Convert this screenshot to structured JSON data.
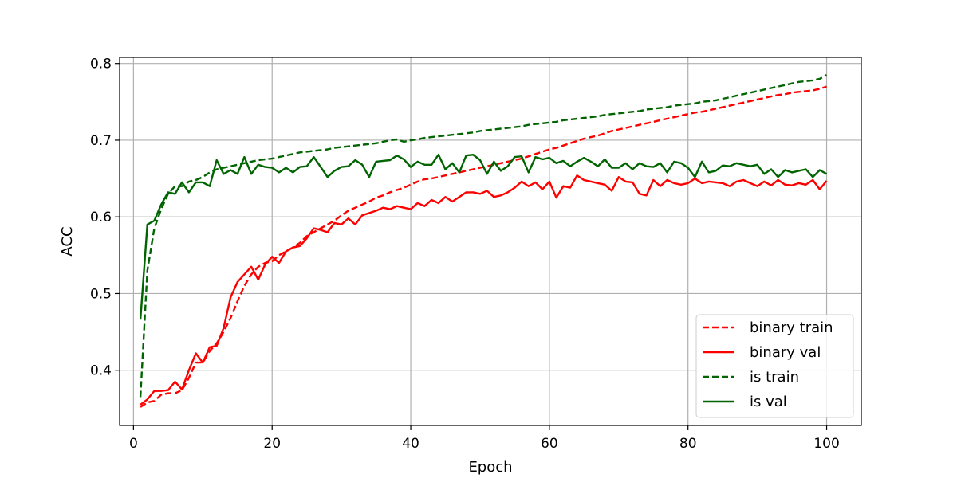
{
  "chart_data": {
    "type": "line",
    "title": "",
    "xlabel": "Epoch",
    "ylabel": "ACC",
    "xlim": [
      -2,
      105
    ],
    "ylim": [
      0.328,
      0.808
    ],
    "xticks": [
      0,
      20,
      40,
      60,
      80,
      100
    ],
    "yticks": [
      0.4,
      0.5,
      0.6,
      0.7,
      0.8
    ],
    "grid": true,
    "legend_position": "lower-right",
    "series": [
      {
        "name": "binary train",
        "color": "#ff0000",
        "style": "dashed",
        "x": [
          1,
          2,
          3,
          4,
          5,
          6,
          7,
          8,
          9,
          10,
          11,
          12,
          13,
          14,
          15,
          16,
          17,
          18,
          19,
          20,
          21,
          22,
          23,
          24,
          25,
          26,
          27,
          28,
          29,
          30,
          31,
          32,
          33,
          34,
          35,
          36,
          37,
          38,
          39,
          40,
          41,
          42,
          43,
          44,
          45,
          46,
          47,
          48,
          49,
          50,
          51,
          52,
          53,
          54,
          55,
          56,
          57,
          58,
          59,
          60,
          61,
          62,
          63,
          64,
          65,
          66,
          67,
          68,
          69,
          70,
          71,
          72,
          73,
          74,
          75,
          76,
          77,
          78,
          79,
          80,
          81,
          82,
          83,
          84,
          85,
          86,
          87,
          88,
          89,
          90,
          91,
          92,
          93,
          94,
          95,
          96,
          97,
          98,
          99,
          100
        ],
        "y": [
          0.352,
          0.358,
          0.36,
          0.368,
          0.37,
          0.37,
          0.374,
          0.39,
          0.41,
          0.41,
          0.425,
          0.435,
          0.45,
          0.468,
          0.49,
          0.51,
          0.525,
          0.535,
          0.54,
          0.542,
          0.55,
          0.555,
          0.56,
          0.566,
          0.575,
          0.58,
          0.585,
          0.59,
          0.595,
          0.602,
          0.608,
          0.612,
          0.616,
          0.62,
          0.625,
          0.628,
          0.632,
          0.635,
          0.638,
          0.642,
          0.646,
          0.649,
          0.65,
          0.652,
          0.654,
          0.656,
          0.658,
          0.66,
          0.662,
          0.664,
          0.666,
          0.668,
          0.67,
          0.672,
          0.674,
          0.676,
          0.679,
          0.682,
          0.685,
          0.688,
          0.69,
          0.693,
          0.696,
          0.699,
          0.702,
          0.704,
          0.706,
          0.709,
          0.712,
          0.714,
          0.716,
          0.718,
          0.72,
          0.722,
          0.724,
          0.726,
          0.728,
          0.73,
          0.732,
          0.734,
          0.736,
          0.737,
          0.739,
          0.741,
          0.743,
          0.745,
          0.747,
          0.749,
          0.751,
          0.753,
          0.755,
          0.757,
          0.759,
          0.76,
          0.762,
          0.763,
          0.764,
          0.765,
          0.767,
          0.77
        ]
      },
      {
        "name": "binary val",
        "color": "#ff0000",
        "style": "solid",
        "x": [
          1,
          2,
          3,
          4,
          5,
          6,
          7,
          8,
          9,
          10,
          11,
          12,
          13,
          14,
          15,
          16,
          17,
          18,
          19,
          20,
          21,
          22,
          23,
          24,
          25,
          26,
          27,
          28,
          29,
          30,
          31,
          32,
          33,
          34,
          35,
          36,
          37,
          38,
          39,
          40,
          41,
          42,
          43,
          44,
          45,
          46,
          47,
          48,
          49,
          50,
          51,
          52,
          53,
          54,
          55,
          56,
          57,
          58,
          59,
          60,
          61,
          62,
          63,
          64,
          65,
          66,
          67,
          68,
          69,
          70,
          71,
          72,
          73,
          74,
          75,
          76,
          77,
          78,
          79,
          80,
          81,
          82,
          83,
          84,
          85,
          86,
          87,
          88,
          89,
          90,
          91,
          92,
          93,
          94,
          95,
          96,
          97,
          98,
          99,
          100
        ],
        "y": [
          0.355,
          0.362,
          0.373,
          0.373,
          0.374,
          0.385,
          0.375,
          0.4,
          0.422,
          0.41,
          0.43,
          0.432,
          0.455,
          0.495,
          0.515,
          0.525,
          0.535,
          0.518,
          0.538,
          0.548,
          0.54,
          0.555,
          0.56,
          0.562,
          0.572,
          0.585,
          0.583,
          0.58,
          0.592,
          0.59,
          0.598,
          0.59,
          0.602,
          0.605,
          0.608,
          0.612,
          0.61,
          0.614,
          0.612,
          0.61,
          0.618,
          0.614,
          0.622,
          0.618,
          0.626,
          0.62,
          0.626,
          0.632,
          0.632,
          0.63,
          0.634,
          0.626,
          0.628,
          0.632,
          0.638,
          0.646,
          0.64,
          0.645,
          0.636,
          0.646,
          0.625,
          0.64,
          0.638,
          0.654,
          0.648,
          0.646,
          0.644,
          0.642,
          0.634,
          0.652,
          0.646,
          0.645,
          0.63,
          0.628,
          0.648,
          0.64,
          0.648,
          0.644,
          0.642,
          0.644,
          0.65,
          0.644,
          0.646,
          0.645,
          0.644,
          0.64,
          0.646,
          0.648,
          0.644,
          0.64,
          0.646,
          0.641,
          0.648,
          0.642,
          0.641,
          0.644,
          0.642,
          0.648,
          0.636,
          0.647
        ]
      },
      {
        "name": "is train",
        "color": "#006400",
        "style": "dashed",
        "x": [
          1,
          2,
          3,
          4,
          5,
          6,
          7,
          8,
          9,
          10,
          11,
          12,
          13,
          14,
          15,
          16,
          17,
          18,
          19,
          20,
          21,
          22,
          23,
          24,
          25,
          26,
          27,
          28,
          29,
          30,
          31,
          32,
          33,
          34,
          35,
          36,
          37,
          38,
          39,
          40,
          41,
          42,
          43,
          44,
          45,
          46,
          47,
          48,
          49,
          50,
          51,
          52,
          53,
          54,
          55,
          56,
          57,
          58,
          59,
          60,
          61,
          62,
          63,
          64,
          65,
          66,
          67,
          68,
          69,
          70,
          71,
          72,
          73,
          74,
          75,
          76,
          77,
          78,
          79,
          80,
          81,
          82,
          83,
          84,
          85,
          86,
          87,
          88,
          89,
          90,
          91,
          92,
          93,
          94,
          95,
          96,
          97,
          98,
          99,
          100
        ],
        "y": [
          0.365,
          0.53,
          0.585,
          0.61,
          0.63,
          0.64,
          0.64,
          0.646,
          0.648,
          0.652,
          0.658,
          0.662,
          0.664,
          0.666,
          0.668,
          0.67,
          0.672,
          0.674,
          0.675,
          0.676,
          0.678,
          0.68,
          0.682,
          0.684,
          0.685,
          0.686,
          0.687,
          0.688,
          0.69,
          0.691,
          0.692,
          0.693,
          0.694,
          0.695,
          0.696,
          0.698,
          0.7,
          0.701,
          0.698,
          0.7,
          0.701,
          0.703,
          0.704,
          0.705,
          0.706,
          0.707,
          0.708,
          0.709,
          0.71,
          0.712,
          0.713,
          0.714,
          0.715,
          0.716,
          0.717,
          0.718,
          0.72,
          0.721,
          0.722,
          0.723,
          0.724,
          0.726,
          0.727,
          0.728,
          0.729,
          0.73,
          0.731,
          0.733,
          0.734,
          0.735,
          0.736,
          0.737,
          0.738,
          0.74,
          0.741,
          0.742,
          0.743,
          0.745,
          0.746,
          0.747,
          0.748,
          0.75,
          0.751,
          0.752,
          0.754,
          0.756,
          0.758,
          0.76,
          0.762,
          0.764,
          0.766,
          0.768,
          0.77,
          0.772,
          0.774,
          0.776,
          0.777,
          0.778,
          0.78,
          0.785
        ]
      },
      {
        "name": "is val",
        "color": "#006400",
        "style": "solid",
        "x": [
          1,
          2,
          3,
          4,
          5,
          6,
          7,
          8,
          9,
          10,
          11,
          12,
          13,
          14,
          15,
          16,
          17,
          18,
          19,
          20,
          21,
          22,
          23,
          24,
          25,
          26,
          27,
          28,
          29,
          30,
          31,
          32,
          33,
          34,
          35,
          36,
          37,
          38,
          39,
          40,
          41,
          42,
          43,
          44,
          45,
          46,
          47,
          48,
          49,
          50,
          51,
          52,
          53,
          54,
          55,
          56,
          57,
          58,
          59,
          60,
          61,
          62,
          63,
          64,
          65,
          66,
          67,
          68,
          69,
          70,
          71,
          72,
          73,
          74,
          75,
          76,
          77,
          78,
          79,
          80,
          81,
          82,
          83,
          84,
          85,
          86,
          87,
          88,
          89,
          90,
          91,
          92,
          93,
          94,
          95,
          96,
          97,
          98,
          99,
          100
        ],
        "y": [
          0.466,
          0.59,
          0.595,
          0.616,
          0.632,
          0.63,
          0.645,
          0.632,
          0.645,
          0.645,
          0.64,
          0.674,
          0.656,
          0.661,
          0.656,
          0.678,
          0.656,
          0.668,
          0.665,
          0.664,
          0.658,
          0.664,
          0.658,
          0.665,
          0.666,
          0.678,
          0.665,
          0.652,
          0.66,
          0.665,
          0.666,
          0.674,
          0.668,
          0.652,
          0.672,
          0.673,
          0.674,
          0.68,
          0.675,
          0.665,
          0.672,
          0.668,
          0.668,
          0.681,
          0.662,
          0.67,
          0.658,
          0.68,
          0.681,
          0.674,
          0.656,
          0.672,
          0.66,
          0.666,
          0.678,
          0.679,
          0.658,
          0.678,
          0.675,
          0.677,
          0.67,
          0.673,
          0.666,
          0.672,
          0.677,
          0.672,
          0.666,
          0.675,
          0.664,
          0.664,
          0.67,
          0.662,
          0.67,
          0.666,
          0.665,
          0.67,
          0.658,
          0.672,
          0.67,
          0.664,
          0.652,
          0.672,
          0.658,
          0.66,
          0.667,
          0.666,
          0.67,
          0.668,
          0.666,
          0.668,
          0.656,
          0.662,
          0.652,
          0.661,
          0.658,
          0.66,
          0.662,
          0.652,
          0.661,
          0.656
        ]
      }
    ]
  }
}
